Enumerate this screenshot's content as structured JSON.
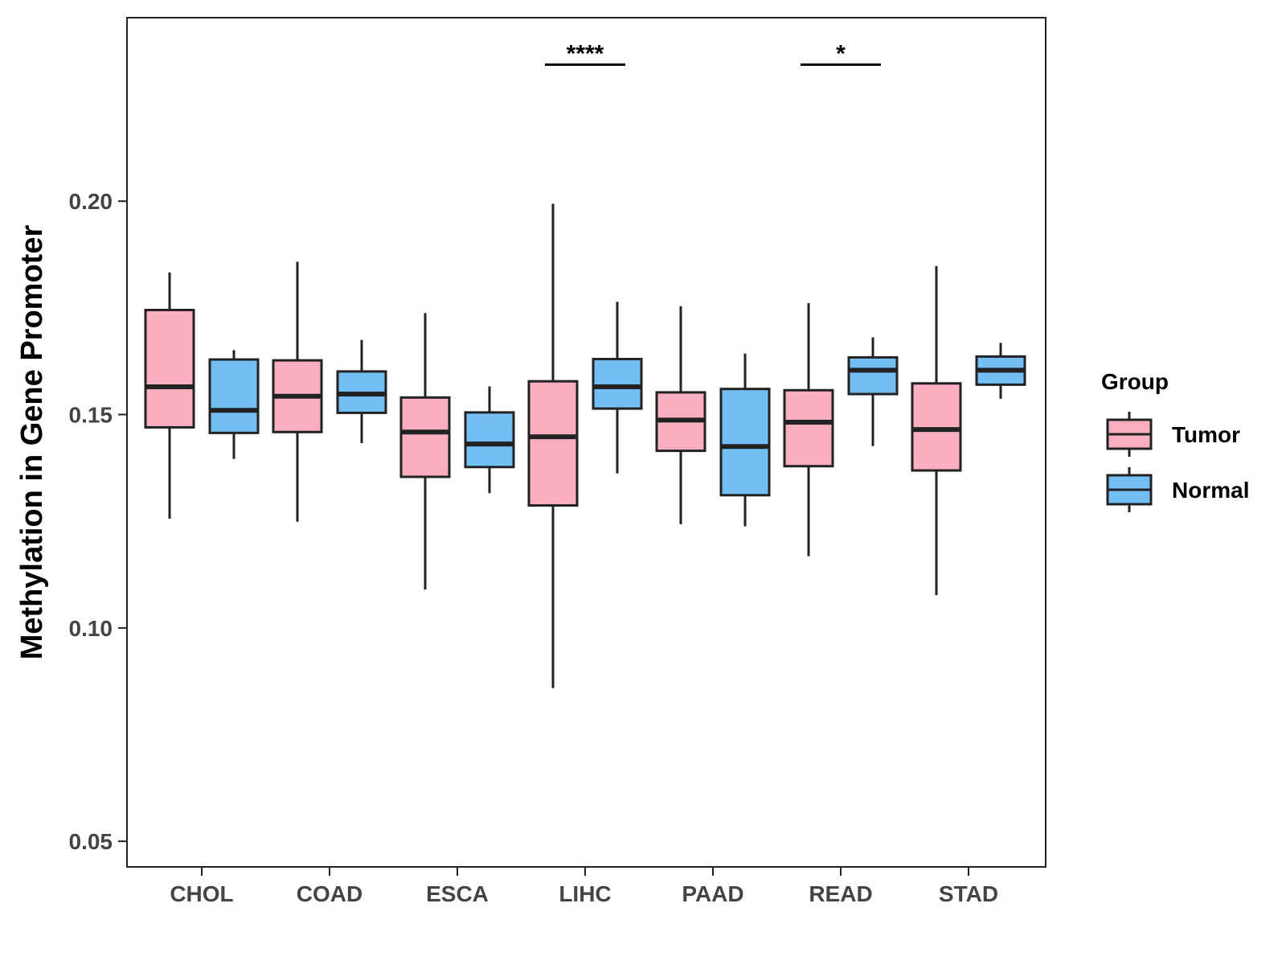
{
  "chart_data": {
    "type": "box",
    "title": "",
    "xlabel": "",
    "ylabel": "Methylation in Gene Promoter",
    "ylim": [
      0.044,
      0.243
    ],
    "yticks": [
      0.05,
      0.1,
      0.15,
      0.2
    ],
    "ytick_labels": [
      "0.05",
      "0.10",
      "0.15",
      "0.20"
    ],
    "categories": [
      "CHOL",
      "COAD",
      "ESCA",
      "LIHC",
      "PAAD",
      "READ",
      "STAD"
    ],
    "legend": {
      "title": "Group",
      "position": "right",
      "entries": [
        {
          "name": "Tumor",
          "color": "#F9AFC0"
        },
        {
          "name": "Normal",
          "color": "#74BEF6"
        }
      ]
    },
    "series": [
      {
        "name": "Tumor",
        "color": "#F9AFC0",
        "boxes": [
          {
            "category": "CHOL",
            "min": 0.1256,
            "q1": 0.147,
            "median": 0.1565,
            "q3": 0.1745,
            "max": 0.1833
          },
          {
            "category": "COAD",
            "min": 0.1249,
            "q1": 0.1459,
            "median": 0.1543,
            "q3": 0.1627,
            "max": 0.1858
          },
          {
            "category": "ESCA",
            "min": 0.109,
            "q1": 0.1354,
            "median": 0.1459,
            "q3": 0.154,
            "max": 0.1738
          },
          {
            "category": "LIHC",
            "min": 0.0859,
            "q1": 0.1287,
            "median": 0.1448,
            "q3": 0.1578,
            "max": 0.1994
          },
          {
            "category": "PAAD",
            "min": 0.1243,
            "q1": 0.1415,
            "median": 0.1487,
            "q3": 0.1552,
            "max": 0.1754
          },
          {
            "category": "READ",
            "min": 0.1168,
            "q1": 0.1379,
            "median": 0.1482,
            "q3": 0.1557,
            "max": 0.1761
          },
          {
            "category": "STAD",
            "min": 0.1077,
            "q1": 0.1369,
            "median": 0.1465,
            "q3": 0.1573,
            "max": 0.1848
          }
        ]
      },
      {
        "name": "Normal",
        "color": "#74BEF6",
        "boxes": [
          {
            "category": "CHOL",
            "min": 0.1396,
            "q1": 0.1457,
            "median": 0.151,
            "q3": 0.1629,
            "max": 0.1651
          },
          {
            "category": "COAD",
            "min": 0.1433,
            "q1": 0.1504,
            "median": 0.1548,
            "q3": 0.1601,
            "max": 0.1675
          },
          {
            "category": "ESCA",
            "min": 0.1316,
            "q1": 0.1377,
            "median": 0.1431,
            "q3": 0.1505,
            "max": 0.1566
          },
          {
            "category": "LIHC",
            "min": 0.1362,
            "q1": 0.1514,
            "median": 0.1565,
            "q3": 0.163,
            "max": 0.1764
          },
          {
            "category": "PAAD",
            "min": 0.1238,
            "q1": 0.1311,
            "median": 0.1425,
            "q3": 0.156,
            "max": 0.1643
          },
          {
            "category": "READ",
            "min": 0.1426,
            "q1": 0.1548,
            "median": 0.1604,
            "q3": 0.1634,
            "max": 0.1681
          },
          {
            "category": "STAD",
            "min": 0.1537,
            "q1": 0.157,
            "median": 0.1604,
            "q3": 0.1636,
            "max": 0.1668
          }
        ]
      }
    ],
    "annotations": [
      {
        "category": "LIHC",
        "label": "****",
        "y": 0.232
      },
      {
        "category": "READ",
        "label": "*",
        "y": 0.232
      }
    ]
  }
}
